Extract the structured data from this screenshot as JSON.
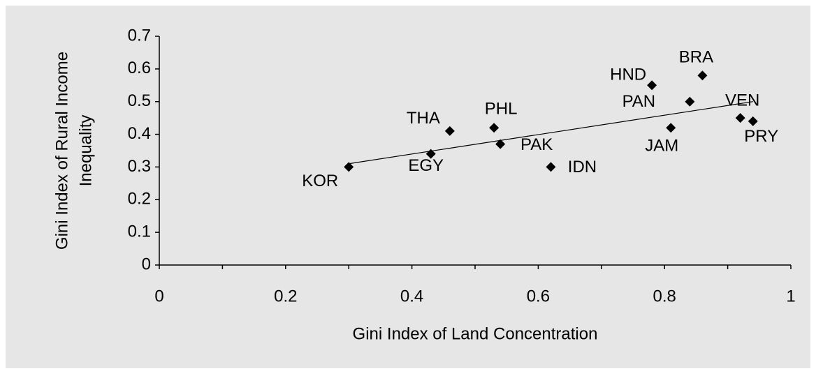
{
  "chart_data": {
    "type": "scatter",
    "xlabel": "Gini Index of Land Concentration",
    "ylabel": [
      "Gini Index of Rural Income",
      "Inequality"
    ],
    "labels": [
      "KOR",
      "EGY",
      "THA",
      "PHL",
      "PAK",
      "IDN",
      "HND",
      "JAM",
      "PAN",
      "BRA",
      "VEN",
      "PRY"
    ],
    "x": [
      0.3,
      0.43,
      0.46,
      0.53,
      0.54,
      0.62,
      0.78,
      0.81,
      0.84,
      0.86,
      0.92,
      0.94
    ],
    "y": [
      0.3,
      0.34,
      0.41,
      0.42,
      0.37,
      0.3,
      0.55,
      0.42,
      0.5,
      0.58,
      0.45,
      0.44
    ],
    "color": "#000000",
    "trendline": {
      "x": [
        0.3,
        0.94
      ],
      "y": [
        0.31,
        0.5
      ]
    },
    "xlim": [
      0,
      1
    ],
    "xticks": [
      0,
      0.2,
      0.4,
      0.6,
      0.8,
      1
    ],
    "xminor_ticks": [
      0.1,
      0.3,
      0.5,
      0.7,
      0.9
    ],
    "ylim": [
      0,
      0.7
    ],
    "yticks": [
      0,
      0.1,
      0.2,
      0.3,
      0.4,
      0.5,
      0.6,
      0.7
    ]
  }
}
